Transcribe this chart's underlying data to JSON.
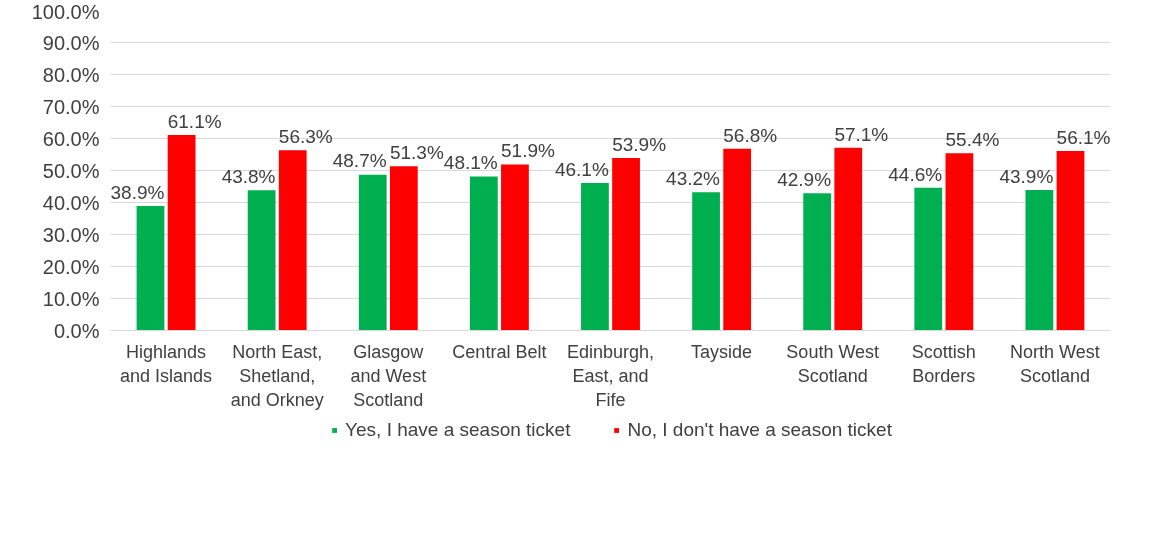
{
  "chart_data": {
    "type": "bar",
    "categories": [
      "Highlands\nand Islands",
      "North East,\nShetland,\nand Orkney",
      "Glasgow\nand West\nScotland",
      "Central Belt",
      "Edinburgh,\nEast, and\nFife",
      "Tayside",
      "South West\nScotland",
      "Scottish\nBorders",
      "North West\nScotland"
    ],
    "series": [
      {
        "name": "Yes, I have a season ticket",
        "color": "#00b050",
        "values": [
          38.9,
          43.8,
          48.7,
          48.1,
          46.1,
          43.2,
          42.9,
          44.6,
          43.9
        ],
        "value_labels": [
          "38.9%",
          "43.8%",
          "48.7%",
          "48.1%",
          "46.1%",
          "43.2%",
          "42.9%",
          "44.6%",
          "43.9%"
        ]
      },
      {
        "name": "No, I don't have a season ticket",
        "color": "#ff0000",
        "values": [
          61.1,
          56.3,
          51.3,
          51.9,
          53.9,
          56.8,
          57.1,
          55.4,
          56.1
        ],
        "value_labels": [
          "61.1%",
          "56.3%",
          "51.3%",
          "51.9%",
          "53.9%",
          "56.8%",
          "57.1%",
          "55.4%",
          "56.1%"
        ]
      }
    ],
    "ylim": [
      0,
      100
    ],
    "yticks": [
      {
        "value": 0,
        "label": "0.0%"
      },
      {
        "value": 10,
        "label": "10.0%"
      },
      {
        "value": 20,
        "label": "20.0%"
      },
      {
        "value": 30,
        "label": "30.0%"
      },
      {
        "value": 40,
        "label": "40.0%"
      },
      {
        "value": 50,
        "label": "50.0%"
      },
      {
        "value": 60,
        "label": "60.0%"
      },
      {
        "value": 70,
        "label": "70.0%"
      },
      {
        "value": 80,
        "label": "80.0%"
      },
      {
        "value": 90,
        "label": "90.0%"
      },
      {
        "value": 100,
        "label": "100.0%"
      }
    ],
    "grid": "y",
    "legend": "bottom"
  }
}
